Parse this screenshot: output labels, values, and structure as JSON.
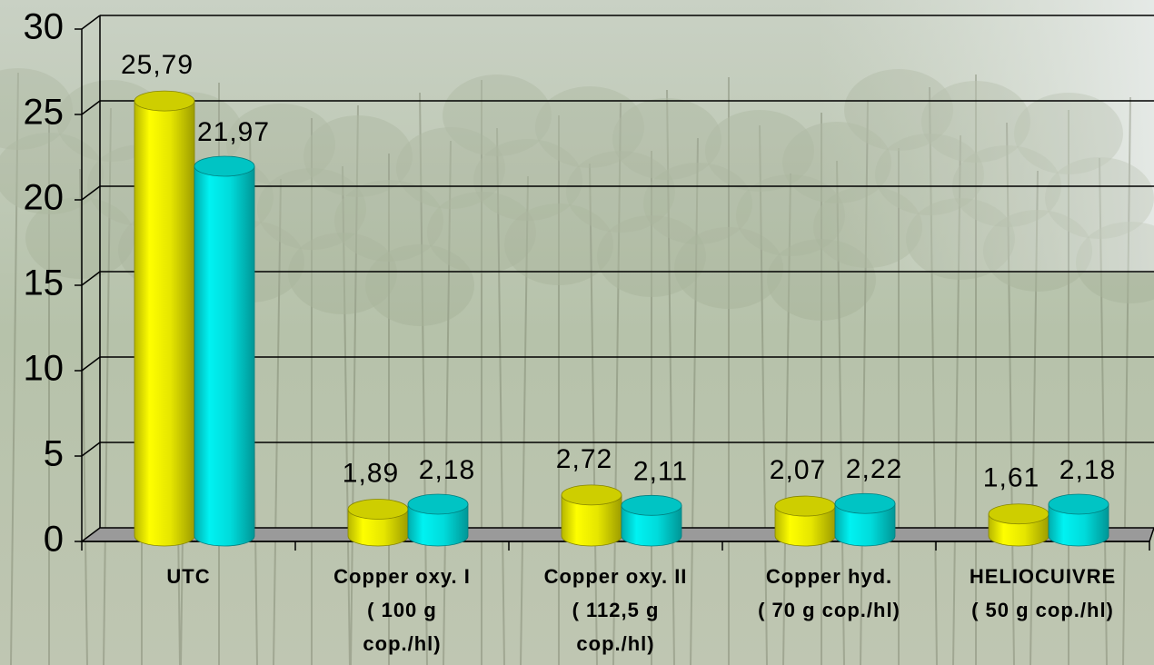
{
  "chart_data": {
    "type": "bar",
    "categories": [
      [
        "UTC"
      ],
      [
        "Copper oxy. I",
        "(   100 g",
        "cop./hl)"
      ],
      [
        "Copper oxy. II",
        "(   112,5 g",
        "cop./hl)"
      ],
      [
        "Copper hyd.",
        "(  70 g cop./hl)"
      ],
      [
        "HELIOCUIVRE",
        "(  50 g cop./hl)"
      ]
    ],
    "series": [
      {
        "color": "#f2f200",
        "values": [
          25.79,
          1.89,
          2.72,
          2.07,
          1.61
        ],
        "value_labels": [
          "25,79",
          "1,89",
          "2,72",
          "2,07",
          "1,61"
        ]
      },
      {
        "color": "#00e6e6",
        "values": [
          21.97,
          2.18,
          2.11,
          2.22,
          2.18
        ],
        "value_labels": [
          "21,97",
          "2,18",
          "2,11",
          "2,22",
          "2,18"
        ]
      }
    ],
    "ylim": [
      0,
      30
    ],
    "yticks": [
      0,
      5,
      10,
      15,
      20,
      25,
      30
    ],
    "grid": true
  }
}
